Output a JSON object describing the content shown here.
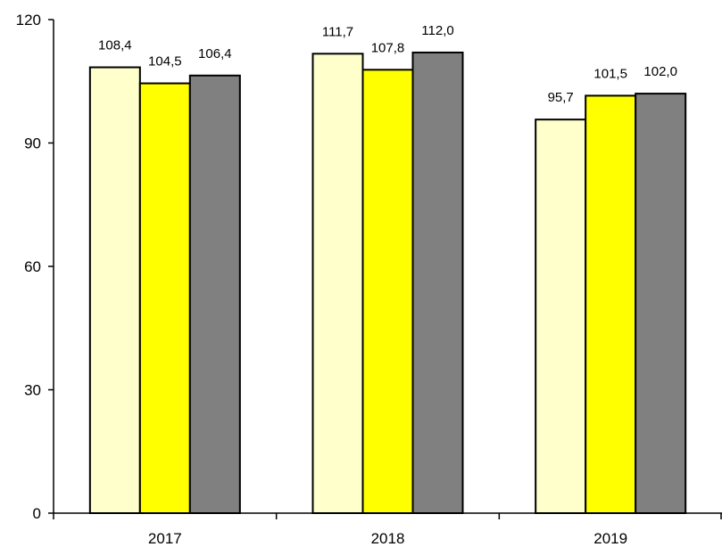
{
  "chart_data": {
    "type": "bar",
    "title": "",
    "xlabel": "",
    "ylabel": "",
    "categories": [
      "2017",
      "2018",
      "2019"
    ],
    "series": [
      {
        "values": [
          108.4,
          111.7,
          95.7
        ],
        "color": "#ffffcc"
      },
      {
        "values": [
          104.5,
          107.8,
          101.5
        ],
        "color": "#ffff00"
      },
      {
        "values": [
          106.4,
          112.0,
          102.0
        ],
        "color": "#808080"
      }
    ],
    "value_labels": [
      [
        "108,4",
        "111,7",
        "95,7"
      ],
      [
        "104,5",
        "107,8",
        "101,5"
      ],
      [
        "106,4",
        "112,0",
        "102,0"
      ]
    ],
    "ylim": [
      0,
      120
    ],
    "yticks": [
      0,
      30,
      60,
      90,
      120
    ],
    "ytick_labels": [
      "0",
      "30",
      "60",
      "90",
      "120"
    ],
    "grid": false,
    "legend": "none"
  }
}
